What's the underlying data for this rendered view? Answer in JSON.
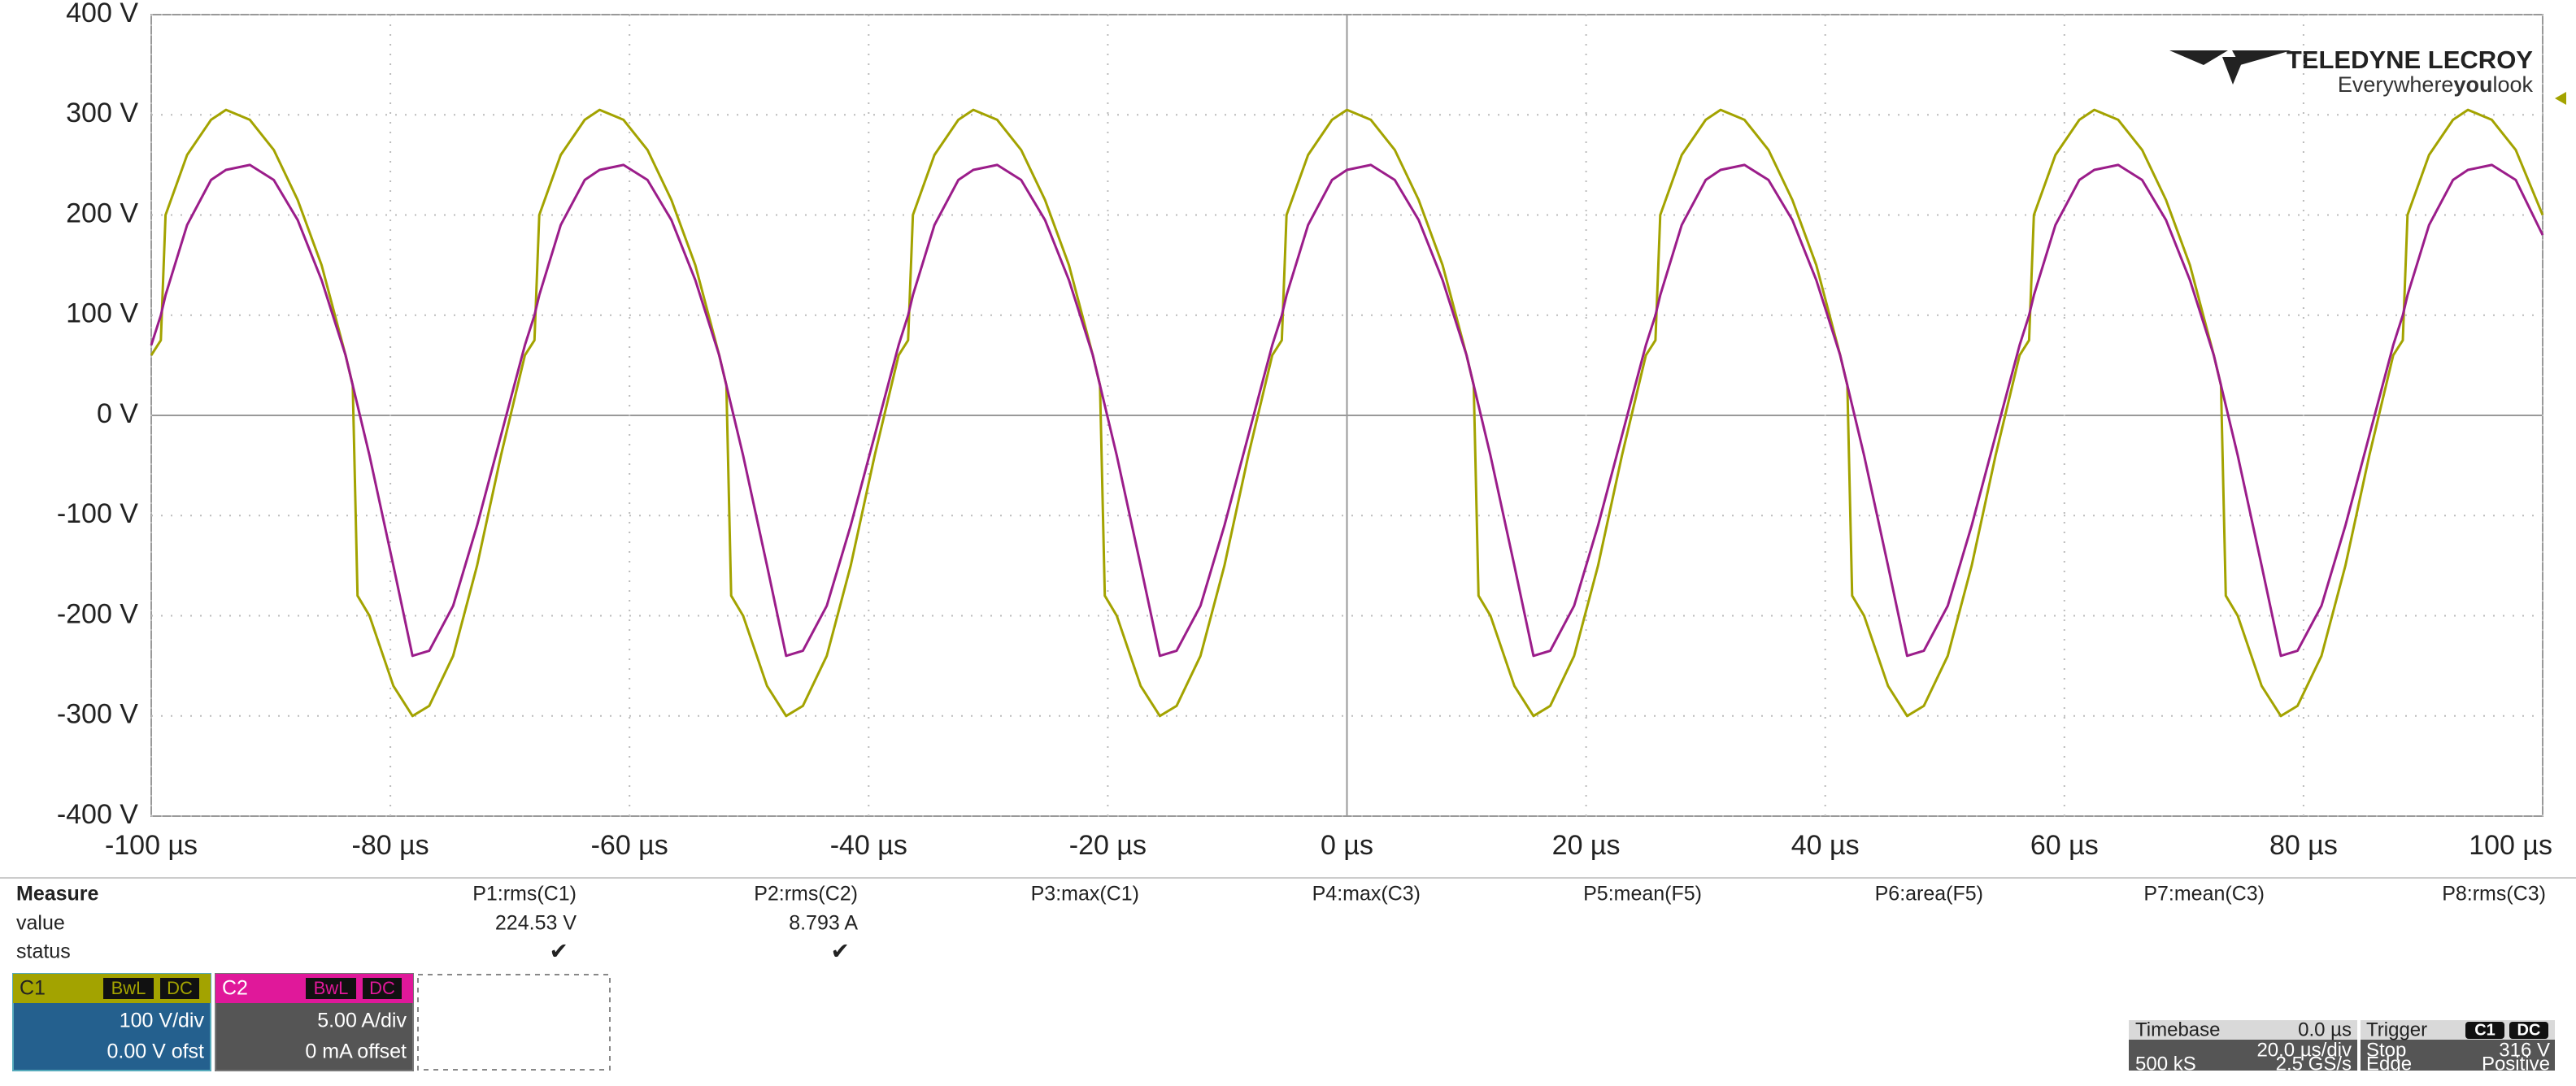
{
  "chart_data": {
    "type": "line",
    "x": [
      -100,
      -99.2,
      -98.8,
      -97,
      -95,
      -93.75,
      -91.75,
      -89.75,
      -87.75,
      -85.75,
      -83.75,
      -83.15,
      -82.75,
      -81.75,
      -79.75,
      -78.15,
      -76.75,
      -74.75,
      -72.75,
      -70.75,
      -68.75,
      -67.95,
      -67.55,
      -65.75,
      -63.75,
      -62.5,
      -60.5,
      -58.5,
      -56.5,
      -54.5,
      -52.5,
      -51.9,
      -51.5,
      -50.5,
      -48.5,
      -46.9,
      -45.5,
      -43.5,
      -41.5,
      -39.5,
      -37.5,
      -36.7,
      -36.3,
      -34.5,
      -32.5,
      -31.25,
      -29.25,
      -27.25,
      -25.25,
      -23.25,
      -21.25,
      -20.65,
      -20.25,
      -19.25,
      -17.25,
      -15.65,
      -14.25,
      -12.25,
      -10.25,
      -8.25,
      -6.25,
      -5.45,
      -5.05,
      -3.25,
      -1.25,
      0,
      2,
      4,
      6,
      8,
      10,
      10.6,
      11,
      12,
      14,
      15.6,
      17,
      19,
      21,
      23,
      25,
      25.8,
      26.2,
      28,
      30,
      31.25,
      33.25,
      35.25,
      37.25,
      39.25,
      41.25,
      41.85,
      42.25,
      43.25,
      45.25,
      46.85,
      48.25,
      50.25,
      52.25,
      54.25,
      56.25,
      57.05,
      57.45,
      59.25,
      61.25,
      62.5,
      64.5,
      66.5,
      68.5,
      70.5,
      72.5,
      73.1,
      73.5,
      74.5,
      76.5,
      78.1,
      79.5,
      81.5,
      83.5,
      85.5,
      87.5,
      88.3,
      88.7,
      90.5,
      92.5,
      93.75,
      95.75,
      97.75,
      100
    ],
    "series": [
      {
        "name": "C1",
        "color": "#a3a300",
        "values": [
          60,
          75,
          200,
          260,
          295,
          305,
          295,
          265,
          215,
          150,
          60,
          30,
          -180,
          -200,
          -270,
          -300,
          -290,
          -240,
          -150,
          -40,
          60,
          75,
          200,
          260,
          295,
          305,
          295,
          265,
          215,
          150,
          60,
          30,
          -180,
          -200,
          -270,
          -300,
          -290,
          -240,
          -150,
          -40,
          60,
          75,
          200,
          260,
          295,
          305,
          295,
          265,
          215,
          150,
          60,
          30,
          -180,
          -200,
          -270,
          -300,
          -290,
          -240,
          -150,
          -40,
          60,
          75,
          200,
          260,
          295,
          305,
          295,
          265,
          215,
          150,
          60,
          30,
          -180,
          -200,
          -270,
          -300,
          -290,
          -240,
          -150,
          -40,
          60,
          75,
          200,
          260,
          295,
          305,
          295,
          265,
          215,
          150,
          60,
          30,
          -180,
          -200,
          -270,
          -300,
          -290,
          -240,
          -150,
          -40,
          60,
          75,
          200,
          260,
          295,
          305,
          295,
          265,
          215,
          150,
          60,
          30,
          -180,
          -200,
          -270,
          -300,
          -290,
          -240,
          -150,
          -40,
          60,
          75,
          200,
          260,
          295,
          305,
          295,
          265,
          200
        ]
      },
      {
        "name": "C2",
        "color": "#9b1d8a",
        "values": [
          70,
          100,
          120,
          190,
          235,
          245,
          250,
          235,
          195,
          135,
          60,
          30,
          10,
          -40,
          -150,
          -240,
          -235,
          -190,
          -110,
          -20,
          70,
          100,
          120,
          190,
          235,
          245,
          250,
          235,
          195,
          135,
          60,
          30,
          10,
          -40,
          -150,
          -240,
          -235,
          -190,
          -110,
          -20,
          70,
          100,
          120,
          190,
          235,
          245,
          250,
          235,
          195,
          135,
          60,
          30,
          10,
          -40,
          -150,
          -240,
          -235,
          -190,
          -110,
          -20,
          70,
          100,
          120,
          190,
          235,
          245,
          250,
          235,
          195,
          135,
          60,
          30,
          10,
          -40,
          -150,
          -240,
          -235,
          -190,
          -110,
          -20,
          70,
          100,
          120,
          190,
          235,
          245,
          250,
          235,
          195,
          135,
          60,
          30,
          10,
          -40,
          -150,
          -240,
          -235,
          -190,
          -110,
          -20,
          70,
          100,
          120,
          190,
          235,
          245,
          250,
          235,
          195,
          135,
          60,
          30,
          10,
          -40,
          -150,
          -240,
          -235,
          -190,
          -110,
          -20,
          70,
          100,
          120,
          190,
          235,
          245,
          250,
          235,
          180
        ]
      }
    ],
    "xlim": [
      -100,
      100
    ],
    "ylim": [
      -400,
      400
    ],
    "xticks": [
      {
        "value": -100,
        "label": "-100 µs"
      },
      {
        "value": -80,
        "label": "-80 µs"
      },
      {
        "value": -60,
        "label": "-60 µs"
      },
      {
        "value": -40,
        "label": "-40 µs"
      },
      {
        "value": -20,
        "label": "-20 µs"
      },
      {
        "value": 0,
        "label": "0 µs"
      },
      {
        "value": 20,
        "label": "20 µs"
      },
      {
        "value": 40,
        "label": "40 µs"
      },
      {
        "value": 60,
        "label": "60 µs"
      },
      {
        "value": 80,
        "label": "80 µs"
      },
      {
        "value": 100,
        "label": "100 µs"
      }
    ],
    "yticks": [
      {
        "value": 400,
        "label": "400 V"
      },
      {
        "value": 300,
        "label": "300 V"
      },
      {
        "value": 200,
        "label": "200 V"
      },
      {
        "value": 100,
        "label": "100 V"
      },
      {
        "value": 0,
        "label": "0 V"
      },
      {
        "value": -100,
        "label": "-100 V"
      },
      {
        "value": -200,
        "label": "-200 V"
      },
      {
        "value": -300,
        "label": "-300 V"
      },
      {
        "value": -400,
        "label": "-400 V"
      }
    ],
    "grid": true
  },
  "logo": {
    "brand": "TELEDYNE LECROY",
    "tagline": [
      "Everywhere",
      "you",
      "look"
    ]
  },
  "measure": {
    "title": "Measure",
    "row_labels": [
      "value",
      "status"
    ],
    "params": [
      {
        "name": "P1:rms(C1)",
        "value": "224.53 V",
        "status": "✔"
      },
      {
        "name": "P2:rms(C2)",
        "value": "8.793 A",
        "status": "✔"
      },
      {
        "name": "P3:max(C1)"
      },
      {
        "name": "P4:max(C3)"
      },
      {
        "name": "P5:mean(F5)"
      },
      {
        "name": "P6:area(F5)"
      },
      {
        "name": "P7:mean(C3)"
      },
      {
        "name": "P8:rms(C3)"
      }
    ]
  },
  "channels": [
    {
      "tags": [
        "BwL",
        "DC"
      ],
      "scale": "100 V/div",
      "offset": "0.00 V ofst"
    },
    {
      "tags": [
        "BwL",
        "DC"
      ],
      "scale": "5.00 A/div",
      "offset": "0 mA offset"
    }
  ],
  "timebase": {
    "label": "Timebase",
    "delay": "0.0 µs",
    "scale": "20.0 µs/div",
    "samples": "500 kS",
    "rate": "2.5 GS/s"
  },
  "trigger": {
    "label": "Trigger",
    "tags": [
      "C1",
      "DC"
    ],
    "mode": "Stop",
    "level": "316 V",
    "type": "Edge",
    "slope": "Positive"
  }
}
